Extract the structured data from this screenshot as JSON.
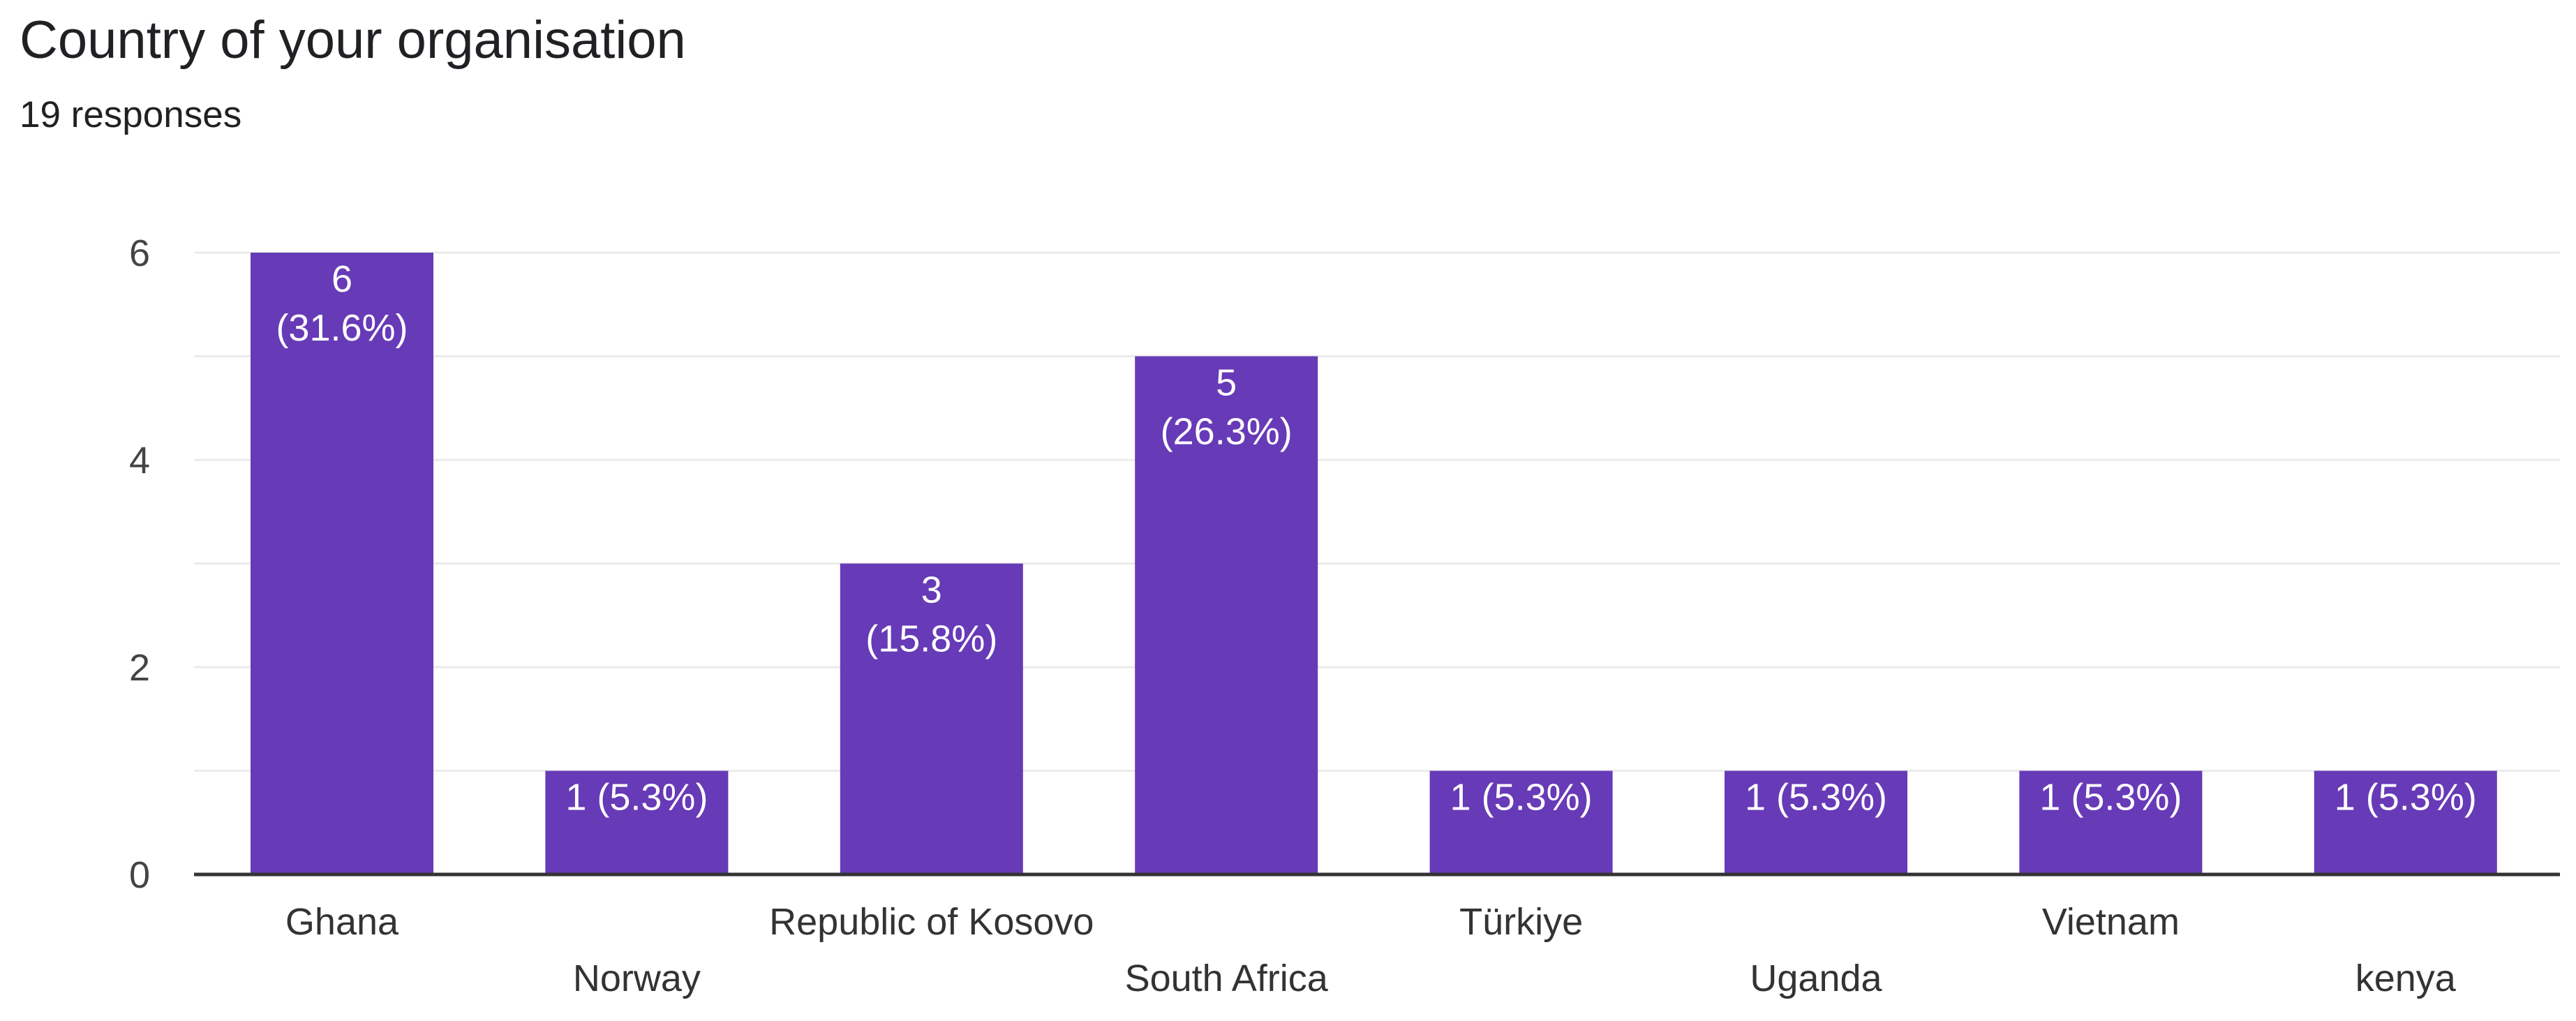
{
  "header": {
    "title": "Country of your organisation",
    "responses": "19 responses"
  },
  "colors": {
    "bar": "#673ab7",
    "bar_label": "#ffffff",
    "gridline": "#ebebeb",
    "axis": "#333333",
    "tick_text": "#444444",
    "category_text": "#333333"
  },
  "chart_data": {
    "type": "bar",
    "categories": [
      "Ghana",
      "Norway",
      "Republic of Kosovo",
      "South Africa",
      "Türkiye",
      "Uganda",
      "Vietnam",
      "kenya"
    ],
    "values": [
      6,
      1,
      3,
      5,
      1,
      1,
      1,
      1
    ],
    "value_labels": [
      [
        "6",
        "(31.6%)"
      ],
      [
        "1 (5.3%)"
      ],
      [
        "3",
        "(15.8%)"
      ],
      [
        "5",
        "(26.3%)"
      ],
      [
        "1 (5.3%)"
      ],
      [
        "1 (5.3%)"
      ],
      [
        "1 (5.3%)"
      ],
      [
        "1 (5.3%)"
      ]
    ],
    "ylim": [
      0,
      6
    ],
    "y_ticks": [
      "0",
      "2",
      "4",
      "6"
    ],
    "y_tick_values": [
      0,
      2,
      4,
      6
    ],
    "minor_grid_values": [
      1,
      3,
      5
    ],
    "grid": true,
    "legend": "none"
  }
}
